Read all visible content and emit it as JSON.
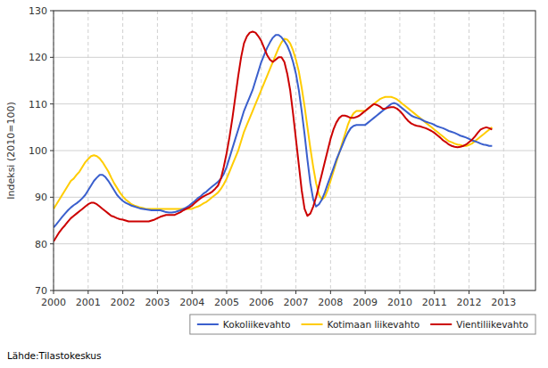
{
  "chart_data": {
    "type": "line",
    "ylabel": "Indeksi (2010=100)",
    "source": "Lähde:Tilastokeskus",
    "xlim": [
      2000.0,
      2013.92
    ],
    "xticks": [
      2000,
      2001,
      2002,
      2003,
      2004,
      2005,
      2006,
      2007,
      2008,
      2009,
      2010,
      2011,
      2012,
      2013
    ],
    "ylim": [
      70,
      130
    ],
    "yticks": [
      70,
      80,
      90,
      100,
      110,
      120,
      130
    ],
    "grid": true,
    "legend": "lower right",
    "x": [
      2000,
      2000.0833333333333,
      2000.1666666666667,
      2000.25,
      2000.3333333333333,
      2000.4166666666667,
      2000.5,
      2000.5833333333333,
      2000.6666666666667,
      2000.75,
      2000.8333333333333,
      2000.9166666666667,
      2001,
      2001.0833333333333,
      2001.1666666666667,
      2001.25,
      2001.3333333333333,
      2001.4166666666667,
      2001.5,
      2001.5833333333333,
      2001.6666666666667,
      2001.75,
      2001.8333333333333,
      2001.9166666666667,
      2002,
      2002.0833333333333,
      2002.1666666666667,
      2002.25,
      2002.3333333333333,
      2002.4166666666667,
      2002.5,
      2002.5833333333333,
      2002.6666666666667,
      2002.75,
      2002.8333333333333,
      2002.9166666666667,
      2003,
      2003.0833333333333,
      2003.1666666666667,
      2003.25,
      2003.3333333333333,
      2003.4166666666667,
      2003.5,
      2003.5833333333333,
      2003.6666666666667,
      2003.75,
      2003.8333333333333,
      2003.9166666666667,
      2004,
      2004.0833333333333,
      2004.1666666666667,
      2004.25,
      2004.3333333333333,
      2004.4166666666667,
      2004.5,
      2004.5833333333333,
      2004.6666666666667,
      2004.75,
      2004.8333333333333,
      2004.9166666666667,
      2005,
      2005.0833333333333,
      2005.1666666666667,
      2005.25,
      2005.3333333333333,
      2005.4166666666667,
      2005.5,
      2005.5833333333333,
      2005.6666666666667,
      2005.75,
      2005.8333333333333,
      2005.9166666666667,
      2006,
      2006.0833333333333,
      2006.1666666666667,
      2006.25,
      2006.3333333333333,
      2006.4166666666667,
      2006.5,
      2006.5833333333333,
      2006.6666666666667,
      2006.75,
      2006.8333333333333,
      2006.9166666666667,
      2007,
      2007.0833333333333,
      2007.1666666666667,
      2007.25,
      2007.3333333333333,
      2007.4166666666667,
      2007.5,
      2007.5833333333333,
      2007.6666666666667,
      2007.75,
      2007.8333333333333,
      2007.9166666666667,
      2008,
      2008.0833333333333,
      2008.1666666666667,
      2008.25,
      2008.3333333333333,
      2008.4166666666667,
      2008.5,
      2008.5833333333333,
      2008.6666666666667,
      2008.75,
      2008.8333333333333,
      2008.9166666666667,
      2009,
      2009.0833333333333,
      2009.1666666666667,
      2009.25,
      2009.3333333333333,
      2009.4166666666667,
      2009.5,
      2009.5833333333333,
      2009.6666666666667,
      2009.75,
      2009.8333333333333,
      2009.9166666666667,
      2010,
      2010.0833333333333,
      2010.1666666666667,
      2010.25,
      2010.3333333333333,
      2010.4166666666667,
      2010.5,
      2010.5833333333333,
      2010.6666666666667,
      2010.75,
      2010.8333333333333,
      2010.9166666666667,
      2011,
      2011.0833333333333,
      2011.1666666666667,
      2011.25,
      2011.3333333333333,
      2011.4166666666667,
      2011.5,
      2011.5833333333333,
      2011.6666666666667,
      2011.75,
      2011.8333333333333,
      2011.9166666666667,
      2012,
      2012.0833333333333,
      2012.1666666666667,
      2012.25,
      2012.3333333333333,
      2012.4166666666667,
      2012.5,
      2012.5833333333333,
      2012.6666666666667
    ],
    "series": [
      {
        "name": "Kokoliikevahto",
        "color": "#3a5fcd",
        "values": [
          83.5,
          84.2,
          85.0,
          85.8,
          86.5,
          87.2,
          87.8,
          88.3,
          88.7,
          89.2,
          89.8,
          90.5,
          91.5,
          92.5,
          93.5,
          94.2,
          94.8,
          94.8,
          94.3,
          93.5,
          92.5,
          91.5,
          90.5,
          89.8,
          89.2,
          88.8,
          88.5,
          88.2,
          88.0,
          87.8,
          87.6,
          87.5,
          87.4,
          87.3,
          87.2,
          87.2,
          87.2,
          87.2,
          87.0,
          86.8,
          86.7,
          86.7,
          86.8,
          87.0,
          87.2,
          87.5,
          87.8,
          88.2,
          88.7,
          89.2,
          89.8,
          90.2,
          90.8,
          91.2,
          91.8,
          92.3,
          92.8,
          93.3,
          94.0,
          95.0,
          96.5,
          98.5,
          100.5,
          102.5,
          104.5,
          106.5,
          108.5,
          110.0,
          111.5,
          113.0,
          115.0,
          117.0,
          119.0,
          120.5,
          122.0,
          123.2,
          124.2,
          124.8,
          124.8,
          124.3,
          123.5,
          122.5,
          121.0,
          119.0,
          116.5,
          113.0,
          108.5,
          103.5,
          98.0,
          93.0,
          89.5,
          88.0,
          88.5,
          89.5,
          91.0,
          92.8,
          94.5,
          96.2,
          98.0,
          99.5,
          101.0,
          102.5,
          103.8,
          104.8,
          105.3,
          105.5,
          105.5,
          105.5,
          105.5,
          106.0,
          106.5,
          107.0,
          107.5,
          108.0,
          108.5,
          109.0,
          109.5,
          110.0,
          110.2,
          110.0,
          109.5,
          109.0,
          108.5,
          108.0,
          107.5,
          107.2,
          107.0,
          106.8,
          106.5,
          106.2,
          106.0,
          105.8,
          105.5,
          105.2,
          105.0,
          104.8,
          104.5,
          104.2,
          104.0,
          103.8,
          103.5,
          103.2,
          103.0,
          102.8,
          102.5,
          102.2,
          102.0,
          101.8,
          101.5,
          101.3,
          101.2,
          101.0,
          101.0
        ]
      },
      {
        "name": "Kotimaan liikevahto",
        "color": "#ffcc00",
        "values": [
          87.5,
          88.5,
          89.5,
          90.5,
          91.5,
          92.5,
          93.5,
          94.0,
          94.8,
          95.5,
          96.5,
          97.5,
          98.2,
          98.8,
          99.0,
          98.8,
          98.3,
          97.5,
          96.5,
          95.5,
          94.2,
          93.0,
          92.0,
          91.0,
          90.2,
          89.5,
          89.0,
          88.5,
          88.2,
          88.0,
          87.8,
          87.7,
          87.5,
          87.5,
          87.5,
          87.5,
          87.5,
          87.5,
          87.5,
          87.5,
          87.5,
          87.5,
          87.5,
          87.5,
          87.5,
          87.5,
          87.5,
          87.5,
          87.5,
          87.8,
          88.0,
          88.3,
          88.7,
          89.0,
          89.5,
          90.0,
          90.5,
          91.0,
          91.8,
          92.8,
          94.0,
          95.5,
          97.0,
          98.5,
          100.0,
          102.0,
          104.0,
          105.5,
          107.0,
          108.5,
          110.0,
          111.5,
          113.0,
          114.5,
          116.0,
          117.5,
          119.0,
          120.5,
          122.0,
          123.2,
          124.0,
          123.8,
          123.0,
          121.5,
          119.5,
          117.0,
          113.5,
          109.5,
          105.0,
          100.5,
          96.5,
          93.0,
          90.5,
          89.5,
          90.0,
          91.5,
          93.5,
          95.5,
          97.5,
          99.5,
          101.5,
          103.5,
          105.5,
          107.0,
          108.0,
          108.5,
          108.5,
          108.5,
          108.5,
          109.0,
          109.5,
          110.0,
          110.5,
          111.0,
          111.3,
          111.5,
          111.5,
          111.5,
          111.3,
          111.0,
          110.5,
          110.0,
          109.5,
          109.0,
          108.5,
          108.0,
          107.5,
          107.0,
          106.5,
          106.0,
          105.5,
          105.0,
          104.5,
          104.0,
          103.5,
          103.0,
          102.5,
          102.0,
          101.8,
          101.5,
          101.3,
          101.2,
          101.0,
          101.0,
          101.2,
          101.5,
          102.0,
          102.5,
          103.0,
          103.5,
          104.0,
          104.5,
          105.0
        ]
      },
      {
        "name": "Vientiliikevahto",
        "color": "#cc0000",
        "values": [
          80.5,
          81.5,
          82.5,
          83.3,
          84.0,
          84.8,
          85.5,
          86.0,
          86.5,
          87.0,
          87.5,
          88.0,
          88.5,
          88.8,
          88.8,
          88.5,
          88.0,
          87.5,
          87.0,
          86.5,
          86.0,
          85.8,
          85.5,
          85.3,
          85.2,
          85.0,
          84.8,
          84.8,
          84.8,
          84.8,
          84.8,
          84.8,
          84.8,
          84.8,
          85.0,
          85.2,
          85.5,
          85.8,
          86.0,
          86.2,
          86.2,
          86.2,
          86.2,
          86.5,
          86.8,
          87.2,
          87.5,
          87.8,
          88.2,
          88.8,
          89.3,
          89.8,
          90.2,
          90.5,
          90.8,
          91.2,
          91.8,
          92.5,
          94.0,
          96.5,
          99.5,
          103.0,
          107.0,
          111.5,
          116.0,
          120.0,
          123.0,
          124.5,
          125.3,
          125.5,
          125.3,
          124.5,
          123.5,
          122.0,
          120.5,
          119.5,
          119.0,
          119.5,
          120.0,
          120.0,
          119.0,
          116.5,
          113.0,
          108.0,
          102.5,
          97.0,
          91.5,
          87.5,
          86.0,
          86.5,
          88.0,
          90.0,
          92.5,
          95.0,
          97.5,
          100.0,
          102.5,
          104.5,
          106.0,
          107.0,
          107.5,
          107.5,
          107.3,
          107.0,
          107.0,
          107.2,
          107.5,
          108.0,
          108.5,
          109.0,
          109.5,
          110.0,
          109.8,
          109.5,
          109.0,
          109.0,
          109.2,
          109.3,
          109.3,
          109.0,
          108.5,
          107.8,
          107.0,
          106.3,
          105.8,
          105.5,
          105.3,
          105.2,
          105.0,
          104.8,
          104.5,
          104.2,
          103.8,
          103.3,
          102.8,
          102.2,
          101.8,
          101.3,
          101.0,
          100.8,
          100.7,
          100.8,
          101.0,
          101.3,
          101.8,
          102.3,
          103.0,
          103.8,
          104.5,
          104.8,
          105.0,
          104.8,
          104.5
        ]
      }
    ]
  }
}
